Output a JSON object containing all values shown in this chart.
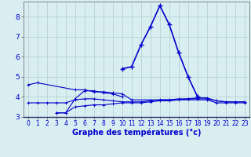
{
  "background_color": "#d8eef0",
  "grid_color": "#b0cdd0",
  "line_color": "#0000cc",
  "xlabel": "Graphe des températures (°c)",
  "ylim": [
    3.0,
    8.75
  ],
  "xlim": [
    -0.5,
    23.5
  ],
  "yticks": [
    3,
    4,
    5,
    6,
    7,
    8
  ],
  "xticks": [
    0,
    1,
    2,
    3,
    4,
    5,
    6,
    7,
    8,
    9,
    10,
    11,
    12,
    13,
    14,
    15,
    16,
    17,
    18,
    19,
    20,
    21,
    22,
    23
  ],
  "xtick_labels": [
    "0",
    "1",
    "2",
    "3",
    "4",
    "5",
    "6",
    "7",
    "8",
    "9",
    "10",
    "11",
    "12",
    "13",
    "14",
    "15",
    "16",
    "17",
    "18",
    "19",
    "20",
    "21",
    "22",
    "23"
  ],
  "tick_fontsize": 5.5,
  "xlabel_fontsize": 7,
  "main_line": [
    [
      10,
      5.4
    ],
    [
      11,
      5.5
    ],
    [
      12,
      6.6
    ],
    [
      13,
      7.5
    ],
    [
      14,
      8.55
    ],
    [
      15,
      7.6
    ],
    [
      16,
      6.2
    ],
    [
      17,
      5.0
    ],
    [
      18,
      4.0
    ]
  ],
  "line_top": [
    [
      0,
      4.6
    ],
    [
      1,
      4.7
    ],
    [
      5,
      4.35
    ],
    [
      6,
      4.35
    ],
    [
      7,
      4.25
    ],
    [
      8,
      4.25
    ],
    [
      9,
      4.2
    ],
    [
      10,
      4.15
    ],
    [
      11,
      3.85
    ],
    [
      19,
      3.85
    ],
    [
      20,
      3.7
    ],
    [
      21,
      3.7
    ],
    [
      22,
      3.7
    ],
    [
      23,
      3.7
    ]
  ],
  "line_mid1": [
    [
      0,
      3.7
    ],
    [
      1,
      3.7
    ],
    [
      2,
      3.7
    ],
    [
      3,
      3.7
    ],
    [
      4,
      3.7
    ],
    [
      5,
      3.85
    ],
    [
      6,
      3.9
    ],
    [
      7,
      3.9
    ],
    [
      8,
      3.85
    ],
    [
      9,
      3.8
    ],
    [
      10,
      3.75
    ],
    [
      11,
      3.75
    ],
    [
      12,
      3.75
    ],
    [
      13,
      3.8
    ],
    [
      14,
      3.85
    ],
    [
      15,
      3.85
    ],
    [
      16,
      3.9
    ],
    [
      17,
      3.9
    ],
    [
      18,
      3.95
    ],
    [
      19,
      3.95
    ],
    [
      20,
      3.8
    ],
    [
      21,
      3.75
    ],
    [
      22,
      3.75
    ],
    [
      23,
      3.75
    ]
  ],
  "line_low": [
    [
      3,
      3.2
    ],
    [
      4,
      3.2
    ],
    [
      5,
      3.5
    ],
    [
      6,
      3.55
    ],
    [
      7,
      3.6
    ],
    [
      8,
      3.6
    ],
    [
      9,
      3.65
    ],
    [
      10,
      3.7
    ],
    [
      11,
      3.7
    ],
    [
      12,
      3.7
    ],
    [
      13,
      3.75
    ],
    [
      14,
      3.8
    ],
    [
      15,
      3.8
    ],
    [
      16,
      3.85
    ],
    [
      17,
      3.9
    ],
    [
      18,
      3.9
    ],
    [
      19,
      3.9
    ],
    [
      20,
      3.8
    ],
    [
      21,
      3.75
    ],
    [
      22,
      3.75
    ],
    [
      23,
      3.75
    ]
  ],
  "line_rise": [
    [
      3,
      3.2
    ],
    [
      4,
      3.2
    ],
    [
      5,
      3.9
    ],
    [
      6,
      4.3
    ],
    [
      7,
      4.3
    ],
    [
      8,
      4.2
    ],
    [
      9,
      4.15
    ],
    [
      10,
      4.0
    ]
  ]
}
